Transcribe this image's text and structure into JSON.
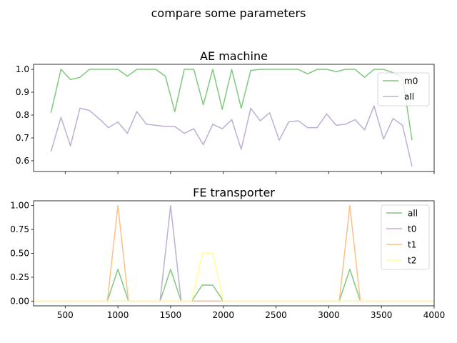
{
  "suptitle": "compare some parameters",
  "chart_data": [
    {
      "type": "line",
      "title": "AE machine",
      "xlabel": "",
      "ylabel": "",
      "xlim": [
        200,
        4000
      ],
      "ylim": [
        0.553,
        1.022
      ],
      "yticks": [
        0.6,
        0.7,
        0.8,
        0.9,
        1.0
      ],
      "ytick_labels": [
        "0.6",
        "0.7",
        "0.8",
        "0.9",
        "1.0"
      ],
      "xticks": [
        500,
        1000,
        1500,
        2000,
        2500,
        3000,
        3500,
        4000
      ],
      "xtick_labels_visible": false,
      "legend_position": "top-right",
      "x": [
        365,
        460,
        550,
        640,
        730,
        820,
        910,
        1000,
        1090,
        1180,
        1270,
        1360,
        1450,
        1540,
        1630,
        1720,
        1810,
        1900,
        1990,
        2080,
        2170,
        2260,
        2350,
        2440,
        2530,
        2620,
        2710,
        2800,
        2890,
        2980,
        3070,
        3160,
        3250,
        3340,
        3430,
        3520,
        3610,
        3700,
        3790
      ],
      "series": [
        {
          "name": "m0",
          "color": "#7fc97f",
          "values": [
            0.81,
            1.0,
            0.955,
            0.965,
            1.0,
            1.0,
            1.0,
            1.0,
            0.97,
            1.0,
            1.0,
            1.0,
            0.97,
            0.815,
            1.0,
            1.0,
            0.845,
            1.0,
            0.825,
            1.0,
            0.83,
            0.995,
            1.0,
            1.0,
            1.0,
            1.0,
            1.0,
            0.98,
            1.0,
            1.0,
            0.99,
            1.0,
            1.0,
            0.965,
            1.0,
            1.0,
            0.985,
            0.965,
            0.69
          ]
        },
        {
          "name": "all",
          "color": "#beaed4",
          "values": [
            0.64,
            0.79,
            0.665,
            0.83,
            0.82,
            0.785,
            0.745,
            0.77,
            0.72,
            0.815,
            0.76,
            0.755,
            0.75,
            0.75,
            0.72,
            0.74,
            0.67,
            0.76,
            0.74,
            0.78,
            0.65,
            0.83,
            0.775,
            0.81,
            0.69,
            0.77,
            0.775,
            0.745,
            0.745,
            0.805,
            0.755,
            0.76,
            0.78,
            0.735,
            0.84,
            0.695,
            0.785,
            0.755,
            0.575
          ]
        }
      ]
    },
    {
      "type": "line",
      "title": "FE transporter",
      "xlabel": "",
      "ylabel": "",
      "xlim": [
        200,
        4000
      ],
      "ylim": [
        -0.05,
        1.05
      ],
      "yticks": [
        0.0,
        0.25,
        0.5,
        0.75,
        1.0
      ],
      "ytick_labels": [
        "0.00",
        "0.25",
        "0.50",
        "0.75",
        "1.00"
      ],
      "xticks": [
        500,
        1000,
        1500,
        2000,
        2500,
        3000,
        3500,
        4000
      ],
      "xtick_labels": [
        "500",
        "1000",
        "1500",
        "2000",
        "2500",
        "3000",
        "3500",
        "4000"
      ],
      "legend_position": "top-right",
      "x": [
        200,
        900,
        1000,
        1100,
        1400,
        1500,
        1600,
        1700,
        1800,
        1900,
        2000,
        3100,
        3200,
        3300,
        4000
      ],
      "series": [
        {
          "name": "all",
          "color": "#7fc97f",
          "values": [
            0,
            0,
            0.333,
            0,
            0,
            0.333,
            0,
            0,
            0.167,
            0.167,
            0,
            0,
            0.333,
            0,
            0
          ]
        },
        {
          "name": "t0",
          "color": "#beaed4",
          "values": [
            0,
            0,
            0,
            0,
            0,
            1.0,
            0,
            0,
            0,
            0,
            0,
            0,
            0,
            0,
            0
          ]
        },
        {
          "name": "t1",
          "color": "#fdc086",
          "values": [
            0,
            0,
            1.0,
            0,
            0,
            0,
            0,
            0,
            0,
            0,
            0,
            0,
            1.0,
            0,
            0
          ]
        },
        {
          "name": "t2",
          "color": "#ffff99",
          "values": [
            0,
            0,
            0,
            0,
            0,
            0,
            0,
            0,
            0.5,
            0.5,
            0,
            0,
            0,
            0,
            0
          ]
        }
      ]
    }
  ]
}
